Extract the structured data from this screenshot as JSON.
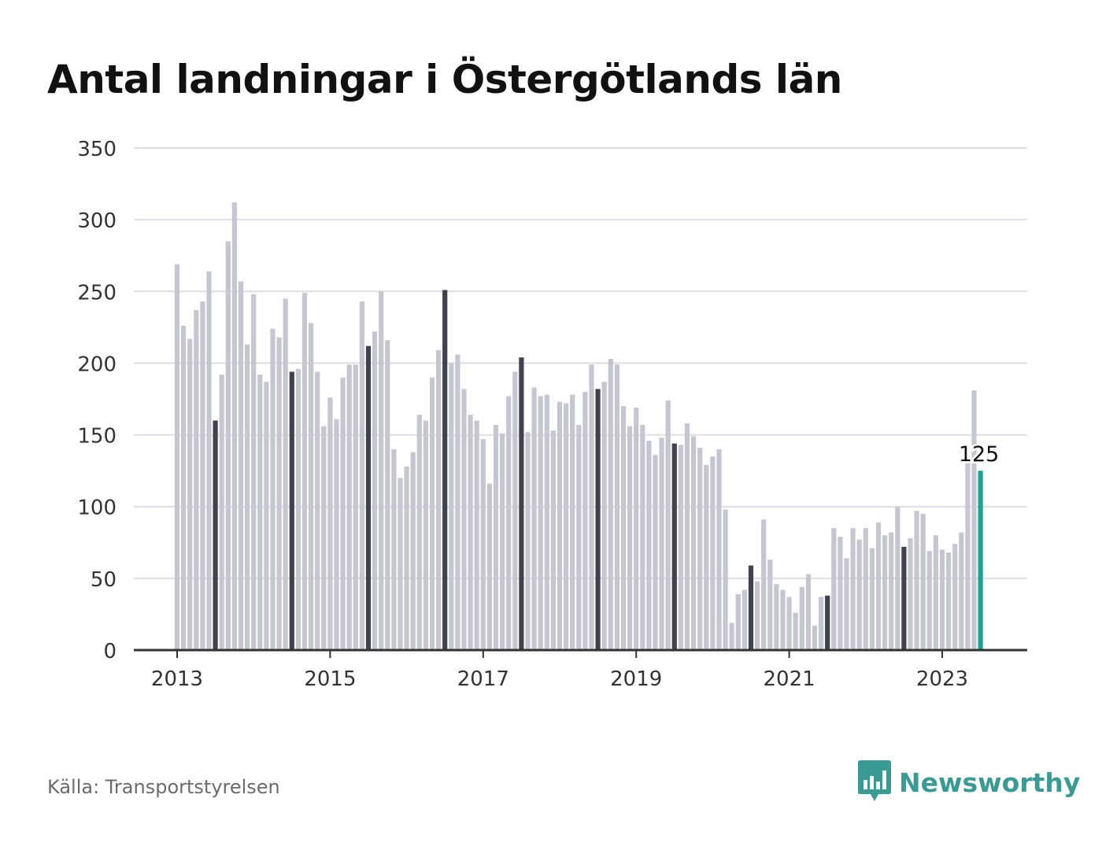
{
  "title": "Antal landningar i Östergötlands län",
  "source": "Källa: Transportstyrelsen",
  "brand": {
    "name": "Newsworthy",
    "icon": "bar-chart-speech-bubble-icon",
    "color": "#3a9b95"
  },
  "colors": {
    "bar": "#c6c6d1",
    "highlight_bar": "#42414f",
    "latest_bar": "#1aa396",
    "grid": "#dddde3",
    "axis": "#333333"
  },
  "chart_data": {
    "type": "bar",
    "title": "Antal landningar i Östergötlands län",
    "xlabel": "",
    "ylabel": "",
    "ylim": [
      0,
      350
    ],
    "y_ticks": [
      0,
      50,
      100,
      150,
      200,
      250,
      300,
      350
    ],
    "x_tick_labels": [
      "2013",
      "2015",
      "2017",
      "2019",
      "2021",
      "2023"
    ],
    "grid": true,
    "x_start": "2013-01",
    "x_end": "2023-07",
    "highlighted_months": [
      "07"
    ],
    "latest_value_label": "125",
    "values": [
      269,
      226,
      217,
      237,
      243,
      264,
      160,
      192,
      285,
      312,
      257,
      213,
      248,
      192,
      187,
      224,
      218,
      245,
      194,
      196,
      249,
      228,
      194,
      156,
      176,
      161,
      190,
      199,
      199,
      243,
      212,
      222,
      250,
      216,
      140,
      120,
      128,
      138,
      164,
      160,
      190,
      209,
      251,
      200,
      206,
      182,
      164,
      160,
      147,
      116,
      157,
      151,
      177,
      194,
      204,
      152,
      183,
      177,
      178,
      153,
      173,
      172,
      178,
      157,
      180,
      199,
      182,
      187,
      203,
      199,
      170,
      156,
      169,
      157,
      146,
      136,
      148,
      174,
      144,
      143,
      158,
      149,
      141,
      129,
      135,
      140,
      98,
      19,
      39,
      42,
      59,
      48,
      91,
      63,
      46,
      42,
      37,
      26,
      44,
      53,
      17,
      37,
      38,
      85,
      79,
      64,
      85,
      77,
      85,
      71,
      89,
      80,
      82,
      100,
      72,
      78,
      97,
      95,
      69,
      80,
      70,
      68,
      74,
      82,
      132,
      181,
      125
    ]
  }
}
